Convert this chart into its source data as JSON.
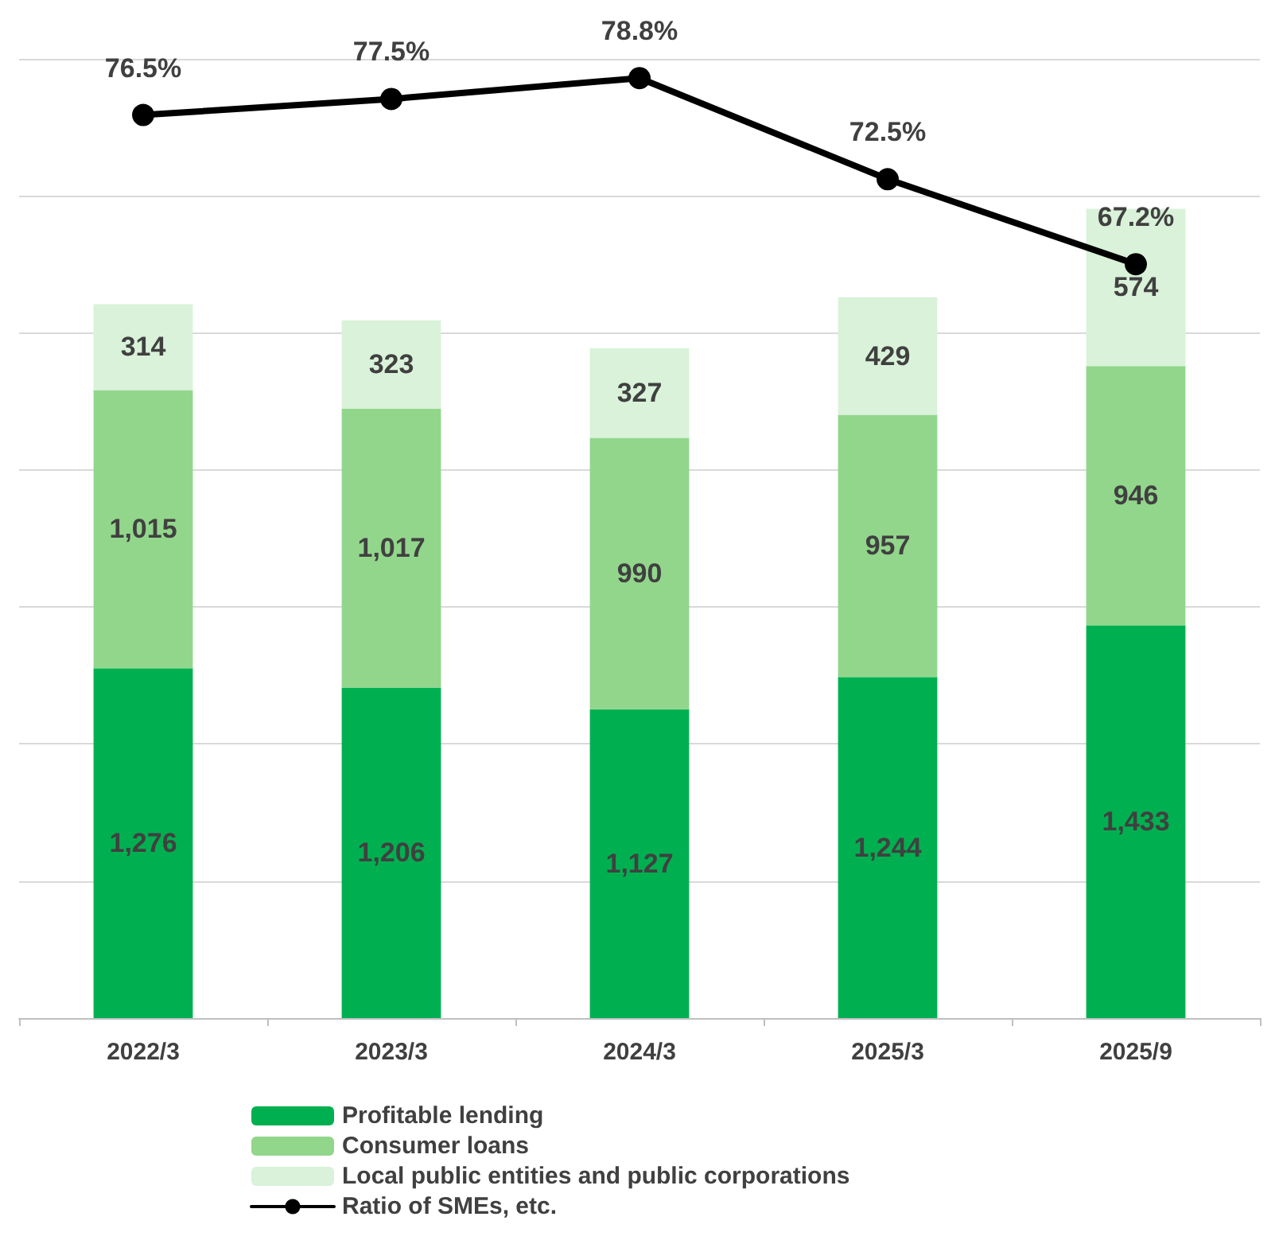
{
  "chart_data": {
    "type": "bar",
    "stacked": true,
    "categories": [
      "2022/3",
      "2023/3",
      "2024/3",
      "2025/3",
      "2025/9"
    ],
    "series": [
      {
        "name": "Profitable lending",
        "color": "#00b050",
        "values": [
          1276,
          1206,
          1127,
          1244,
          1433
        ],
        "value_labels": [
          "1,276",
          "1,206",
          "1,127",
          "1,244",
          "1,433"
        ]
      },
      {
        "name": "Consumer loans",
        "color": "#92d68c",
        "values": [
          1015,
          1017,
          990,
          957,
          946
        ],
        "value_labels": [
          "1,015",
          "1,017",
          "990",
          "957",
          "946"
        ]
      },
      {
        "name": "Local public entities and public corporations",
        "color": "#d9f2d9",
        "values": [
          314,
          323,
          327,
          429,
          574
        ],
        "value_labels": [
          "314",
          "323",
          "327",
          "429",
          "574"
        ]
      },
      {
        "name": "Ratio of SMEs, etc.",
        "type": "line",
        "axis": "y2",
        "color": "#000000",
        "values": [
          76.5,
          77.5,
          78.8,
          72.5,
          67.2
        ],
        "value_labels": [
          "76.5%",
          "77.5%",
          "78.8%",
          "72.5%",
          "67.2%"
        ]
      }
    ],
    "ylim": [
      0,
      3500
    ],
    "yticks": [
      {
        "value": 0,
        "label": null
      },
      {
        "value": 500,
        "label": null
      },
      {
        "value": 1000,
        "label": null
      },
      {
        "value": 1500,
        "label": null
      },
      {
        "value": 2000,
        "label": null
      },
      {
        "value": 2500,
        "label": null
      },
      {
        "value": 3000,
        "label": null
      },
      {
        "value": 3500,
        "label": null
      }
    ],
    "y2lim": [
      20.2,
      80
    ],
    "tick_labels": "x",
    "grid": "y",
    "legend": "bottom",
    "marker": "circle",
    "line_style": "solid"
  }
}
